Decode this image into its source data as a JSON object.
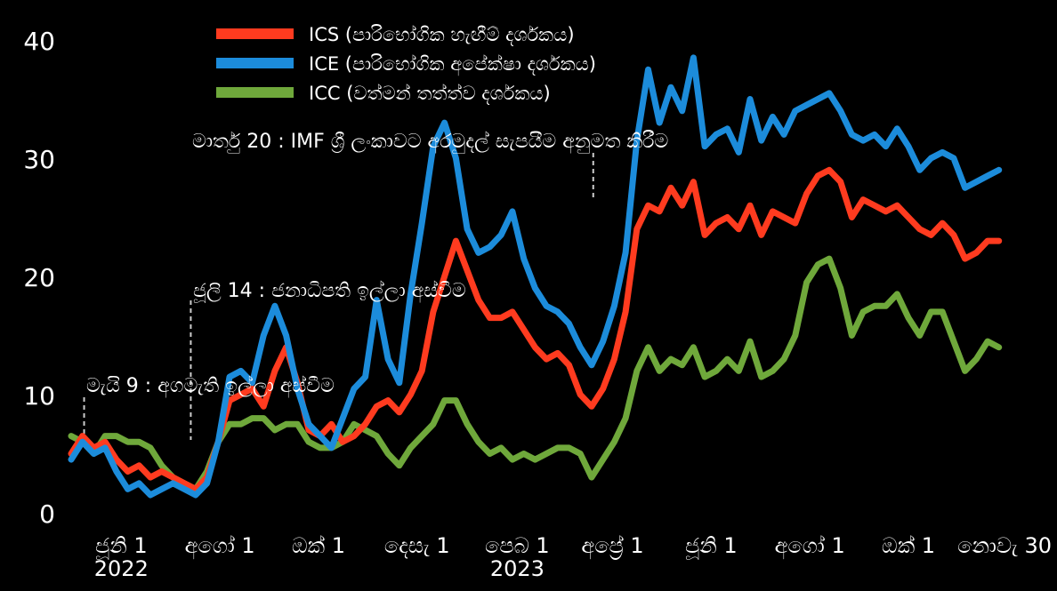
{
  "chart_data": {
    "type": "line",
    "title": "",
    "xlabel": "",
    "ylabel": "",
    "ylim": [
      0,
      40
    ],
    "grid": false,
    "legend_position": "top-center",
    "yticks": [
      "0",
      "10",
      "20",
      "30",
      "40"
    ],
    "xticks": [
      {
        "label": "ජූනි 1",
        "date": "2022-06-01"
      },
      {
        "label": "අගෝ 1",
        "date": "2022-08-01"
      },
      {
        "label": "ඔක් 1",
        "date": "2022-10-01"
      },
      {
        "label": "දෙසැ 1",
        "date": "2022-12-01"
      },
      {
        "label": "පෙබ 1",
        "date": "2023-02-01"
      },
      {
        "label": "අප්‍රේ 1",
        "date": "2023-04-01"
      },
      {
        "label": "ජූනි 1",
        "date": "2023-06-01"
      },
      {
        "label": "අගෝ 1",
        "date": "2023-08-01"
      },
      {
        "label": "ඔක් 1",
        "date": "2023-10-01"
      },
      {
        "label": "නොවැ 30",
        "date": "2023-11-30"
      }
    ],
    "year_labels": [
      {
        "label": "2022",
        "date": "2022-06-01"
      },
      {
        "label": "2023",
        "date": "2023-02-01"
      }
    ],
    "series": [
      {
        "name": "ICS (පාරිභෝගික හැඟීම් දර්ශකය)",
        "color": "#ff3b1f",
        "points": [
          [
            "2022-05-01",
            5.0
          ],
          [
            "2022-05-08",
            6.5
          ],
          [
            "2022-05-15",
            5.5
          ],
          [
            "2022-05-22",
            6.0
          ],
          [
            "2022-05-29",
            4.5
          ],
          [
            "2022-06-05",
            3.5
          ],
          [
            "2022-06-12",
            4.0
          ],
          [
            "2022-06-19",
            3.0
          ],
          [
            "2022-06-26",
            3.5
          ],
          [
            "2022-07-03",
            3.0
          ],
          [
            "2022-07-10",
            2.5
          ],
          [
            "2022-07-17",
            2.0
          ],
          [
            "2022-07-24",
            3.0
          ],
          [
            "2022-07-31",
            6.0
          ],
          [
            "2022-08-07",
            9.5
          ],
          [
            "2022-08-14",
            10.0
          ],
          [
            "2022-08-21",
            10.5
          ],
          [
            "2022-08-28",
            9.0
          ],
          [
            "2022-09-04",
            12.0
          ],
          [
            "2022-09-11",
            14.0
          ],
          [
            "2022-09-18",
            11.0
          ],
          [
            "2022-09-25",
            7.0
          ],
          [
            "2022-10-02",
            6.5
          ],
          [
            "2022-10-09",
            7.5
          ],
          [
            "2022-10-16",
            6.0
          ],
          [
            "2022-10-23",
            6.5
          ],
          [
            "2022-10-30",
            7.5
          ],
          [
            "2022-11-06",
            9.0
          ],
          [
            "2022-11-13",
            9.5
          ],
          [
            "2022-11-20",
            8.5
          ],
          [
            "2022-11-27",
            10.0
          ],
          [
            "2022-12-04",
            12.0
          ],
          [
            "2022-12-11",
            17.0
          ],
          [
            "2022-12-18",
            20.0
          ],
          [
            "2022-12-25",
            23.0
          ],
          [
            "2023-01-01",
            20.5
          ],
          [
            "2023-01-08",
            18.0
          ],
          [
            "2023-01-15",
            16.5
          ],
          [
            "2023-01-22",
            16.5
          ],
          [
            "2023-01-29",
            17.0
          ],
          [
            "2023-02-05",
            15.5
          ],
          [
            "2023-02-12",
            14.0
          ],
          [
            "2023-02-19",
            13.0
          ],
          [
            "2023-02-26",
            13.5
          ],
          [
            "2023-03-05",
            12.5
          ],
          [
            "2023-03-12",
            10.0
          ],
          [
            "2023-03-19",
            9.0
          ],
          [
            "2023-03-26",
            10.5
          ],
          [
            "2023-04-02",
            13.0
          ],
          [
            "2023-04-09",
            17.0
          ],
          [
            "2023-04-16",
            24.0
          ],
          [
            "2023-04-23",
            26.0
          ],
          [
            "2023-04-30",
            25.5
          ],
          [
            "2023-05-07",
            27.5
          ],
          [
            "2023-05-14",
            26.0
          ],
          [
            "2023-05-21",
            28.0
          ],
          [
            "2023-05-28",
            23.5
          ],
          [
            "2023-06-04",
            24.5
          ],
          [
            "2023-06-11",
            25.0
          ],
          [
            "2023-06-18",
            24.0
          ],
          [
            "2023-06-25",
            26.0
          ],
          [
            "2023-07-02",
            23.5
          ],
          [
            "2023-07-09",
            25.5
          ],
          [
            "2023-07-16",
            25.0
          ],
          [
            "2023-07-23",
            24.5
          ],
          [
            "2023-07-30",
            27.0
          ],
          [
            "2023-08-06",
            28.5
          ],
          [
            "2023-08-13",
            29.0
          ],
          [
            "2023-08-20",
            28.0
          ],
          [
            "2023-08-27",
            25.0
          ],
          [
            "2023-09-03",
            26.5
          ],
          [
            "2023-09-10",
            26.0
          ],
          [
            "2023-09-17",
            25.5
          ],
          [
            "2023-09-24",
            26.0
          ],
          [
            "2023-10-01",
            25.0
          ],
          [
            "2023-10-08",
            24.0
          ],
          [
            "2023-10-15",
            23.5
          ],
          [
            "2023-10-22",
            24.5
          ],
          [
            "2023-10-29",
            23.5
          ],
          [
            "2023-11-05",
            21.5
          ],
          [
            "2023-11-12",
            22.0
          ],
          [
            "2023-11-19",
            23.0
          ],
          [
            "2023-11-26",
            23.0
          ]
        ]
      },
      {
        "name": "ICE (පාරිභෝගික අපේක්ෂා දර්ශකය)",
        "color": "#1c8cdb",
        "points": [
          [
            "2022-05-01",
            4.5
          ],
          [
            "2022-05-08",
            6.0
          ],
          [
            "2022-05-15",
            5.0
          ],
          [
            "2022-05-22",
            5.5
          ],
          [
            "2022-05-29",
            3.5
          ],
          [
            "2022-06-05",
            2.0
          ],
          [
            "2022-06-12",
            2.5
          ],
          [
            "2022-06-19",
            1.5
          ],
          [
            "2022-06-26",
            2.0
          ],
          [
            "2022-07-03",
            2.5
          ],
          [
            "2022-07-10",
            2.0
          ],
          [
            "2022-07-17",
            1.5
          ],
          [
            "2022-07-24",
            2.5
          ],
          [
            "2022-07-31",
            6.0
          ],
          [
            "2022-08-07",
            11.5
          ],
          [
            "2022-08-14",
            12.0
          ],
          [
            "2022-08-21",
            11.0
          ],
          [
            "2022-08-28",
            15.0
          ],
          [
            "2022-09-04",
            17.5
          ],
          [
            "2022-09-11",
            15.0
          ],
          [
            "2022-09-18",
            10.5
          ],
          [
            "2022-09-25",
            7.5
          ],
          [
            "2022-10-02",
            6.5
          ],
          [
            "2022-10-09",
            5.5
          ],
          [
            "2022-10-16",
            8.0
          ],
          [
            "2022-10-23",
            10.5
          ],
          [
            "2022-10-30",
            11.5
          ],
          [
            "2022-11-06",
            18.0
          ],
          [
            "2022-11-13",
            13.0
          ],
          [
            "2022-11-20",
            11.0
          ],
          [
            "2022-11-27",
            18.5
          ],
          [
            "2022-12-04",
            24.5
          ],
          [
            "2022-12-11",
            31.0
          ],
          [
            "2022-12-18",
            33.0
          ],
          [
            "2022-12-25",
            30.0
          ],
          [
            "2023-01-01",
            24.0
          ],
          [
            "2023-01-08",
            22.0
          ],
          [
            "2023-01-15",
            22.5
          ],
          [
            "2023-01-22",
            23.5
          ],
          [
            "2023-01-29",
            25.5
          ],
          [
            "2023-02-05",
            21.5
          ],
          [
            "2023-02-12",
            19.0
          ],
          [
            "2023-02-19",
            17.5
          ],
          [
            "2023-02-26",
            17.0
          ],
          [
            "2023-03-05",
            16.0
          ],
          [
            "2023-03-12",
            14.0
          ],
          [
            "2023-03-19",
            12.5
          ],
          [
            "2023-03-26",
            14.5
          ],
          [
            "2023-04-02",
            17.5
          ],
          [
            "2023-04-09",
            22.0
          ],
          [
            "2023-04-16",
            31.5
          ],
          [
            "2023-04-23",
            37.5
          ],
          [
            "2023-04-30",
            33.0
          ],
          [
            "2023-05-07",
            36.0
          ],
          [
            "2023-05-14",
            34.0
          ],
          [
            "2023-05-21",
            38.5
          ],
          [
            "2023-05-28",
            31.0
          ],
          [
            "2023-06-04",
            32.0
          ],
          [
            "2023-06-11",
            32.5
          ],
          [
            "2023-06-18",
            30.5
          ],
          [
            "2023-06-25",
            35.0
          ],
          [
            "2023-07-02",
            31.5
          ],
          [
            "2023-07-09",
            33.5
          ],
          [
            "2023-07-16",
            32.0
          ],
          [
            "2023-07-23",
            34.0
          ],
          [
            "2023-07-30",
            34.5
          ],
          [
            "2023-08-06",
            35.0
          ],
          [
            "2023-08-13",
            35.5
          ],
          [
            "2023-08-20",
            34.0
          ],
          [
            "2023-08-27",
            32.0
          ],
          [
            "2023-09-03",
            31.5
          ],
          [
            "2023-09-10",
            32.0
          ],
          [
            "2023-09-17",
            31.0
          ],
          [
            "2023-09-24",
            32.5
          ],
          [
            "2023-10-01",
            31.0
          ],
          [
            "2023-10-08",
            29.0
          ],
          [
            "2023-10-15",
            30.0
          ],
          [
            "2023-10-22",
            30.5
          ],
          [
            "2023-10-29",
            30.0
          ],
          [
            "2023-11-05",
            27.5
          ],
          [
            "2023-11-12",
            28.0
          ],
          [
            "2023-11-19",
            28.5
          ],
          [
            "2023-11-26",
            29.0
          ]
        ]
      },
      {
        "name": "ICC (වත්මන් තත්ත්ව දර්ශකය)",
        "color": "#6fa83b",
        "points": [
          [
            "2022-05-01",
            6.5
          ],
          [
            "2022-05-08",
            6.0
          ],
          [
            "2022-05-15",
            5.0
          ],
          [
            "2022-05-22",
            6.5
          ],
          [
            "2022-05-29",
            6.5
          ],
          [
            "2022-06-05",
            6.0
          ],
          [
            "2022-06-12",
            6.0
          ],
          [
            "2022-06-19",
            5.5
          ],
          [
            "2022-06-26",
            4.0
          ],
          [
            "2022-07-03",
            3.0
          ],
          [
            "2022-07-10",
            2.5
          ],
          [
            "2022-07-17",
            2.0
          ],
          [
            "2022-07-24",
            3.5
          ],
          [
            "2022-07-31",
            6.0
          ],
          [
            "2022-08-07",
            7.5
          ],
          [
            "2022-08-14",
            7.5
          ],
          [
            "2022-08-21",
            8.0
          ],
          [
            "2022-08-28",
            8.0
          ],
          [
            "2022-09-04",
            7.0
          ],
          [
            "2022-09-11",
            7.5
          ],
          [
            "2022-09-18",
            7.5
          ],
          [
            "2022-09-25",
            6.0
          ],
          [
            "2022-10-02",
            5.5
          ],
          [
            "2022-10-09",
            5.5
          ],
          [
            "2022-10-16",
            6.0
          ],
          [
            "2022-10-23",
            7.5
          ],
          [
            "2022-10-30",
            7.0
          ],
          [
            "2022-11-06",
            6.5
          ],
          [
            "2022-11-13",
            5.0
          ],
          [
            "2022-11-20",
            4.0
          ],
          [
            "2022-11-27",
            5.5
          ],
          [
            "2022-12-04",
            6.5
          ],
          [
            "2022-12-11",
            7.5
          ],
          [
            "2022-12-18",
            9.5
          ],
          [
            "2022-12-25",
            9.5
          ],
          [
            "2023-01-01",
            7.5
          ],
          [
            "2023-01-08",
            6.0
          ],
          [
            "2023-01-15",
            5.0
          ],
          [
            "2023-01-22",
            5.5
          ],
          [
            "2023-01-29",
            4.5
          ],
          [
            "2023-02-05",
            5.0
          ],
          [
            "2023-02-12",
            4.5
          ],
          [
            "2023-02-19",
            5.0
          ],
          [
            "2023-02-26",
            5.5
          ],
          [
            "2023-03-05",
            5.5
          ],
          [
            "2023-03-12",
            5.0
          ],
          [
            "2023-03-19",
            3.0
          ],
          [
            "2023-03-26",
            4.5
          ],
          [
            "2023-04-02",
            6.0
          ],
          [
            "2023-04-09",
            8.0
          ],
          [
            "2023-04-16",
            12.0
          ],
          [
            "2023-04-23",
            14.0
          ],
          [
            "2023-04-30",
            12.0
          ],
          [
            "2023-05-07",
            13.0
          ],
          [
            "2023-05-14",
            12.5
          ],
          [
            "2023-05-21",
            14.0
          ],
          [
            "2023-05-28",
            11.5
          ],
          [
            "2023-06-04",
            12.0
          ],
          [
            "2023-06-11",
            13.0
          ],
          [
            "2023-06-18",
            12.0
          ],
          [
            "2023-06-25",
            14.5
          ],
          [
            "2023-07-02",
            11.5
          ],
          [
            "2023-07-09",
            12.0
          ],
          [
            "2023-07-16",
            13.0
          ],
          [
            "2023-07-23",
            15.0
          ],
          [
            "2023-07-30",
            19.5
          ],
          [
            "2023-08-06",
            21.0
          ],
          [
            "2023-08-13",
            21.5
          ],
          [
            "2023-08-20",
            19.0
          ],
          [
            "2023-08-27",
            15.0
          ],
          [
            "2023-09-03",
            17.0
          ],
          [
            "2023-09-10",
            17.5
          ],
          [
            "2023-09-17",
            17.5
          ],
          [
            "2023-09-24",
            18.5
          ],
          [
            "2023-10-01",
            16.5
          ],
          [
            "2023-10-08",
            15.0
          ],
          [
            "2023-10-15",
            17.0
          ],
          [
            "2023-10-22",
            17.0
          ],
          [
            "2023-10-29",
            14.5
          ],
          [
            "2023-11-05",
            12.0
          ],
          [
            "2023-11-12",
            13.0
          ],
          [
            "2023-11-19",
            14.5
          ],
          [
            "2023-11-26",
            14.0
          ]
        ]
      }
    ],
    "annotations": [
      {
        "text": "මැයි 9 : අගමැති ඉල්ලා අස්වීම",
        "date": "2022-05-09"
      },
      {
        "text": "ජූලි 14 : ජනාධිපති ඉල්ලා අස්වීම",
        "date": "2022-07-14"
      },
      {
        "text": "මාර්තු 20 : IMF ශ්‍රී ලංකාවට අරමුදල් සැපයීම අනුමත කිරීම",
        "date": "2023-03-20"
      }
    ]
  }
}
